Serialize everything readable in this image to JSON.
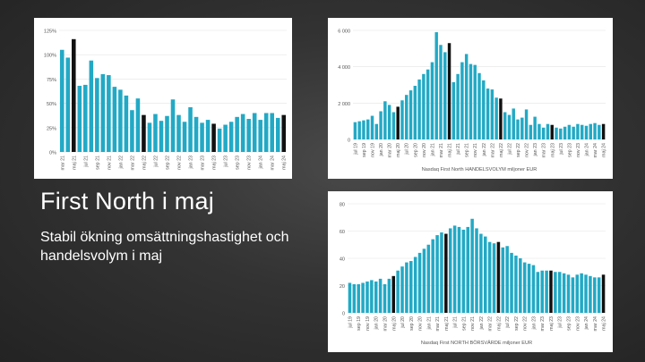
{
  "slide": {
    "title": "First North i maj",
    "subtitle": "Stabil ökning omsättningshastighet och handelsvolym i maj"
  },
  "colors": {
    "bar": "#22a9c5",
    "highlight": "#111111",
    "grid": "#e3e3e3",
    "text": "#555555"
  },
  "chart_data": [
    {
      "type": "bar",
      "title": "",
      "xlabel": "",
      "ylabel": "",
      "ylim": [
        0,
        125
      ],
      "yticks": [
        0,
        25,
        50,
        75,
        100,
        125
      ],
      "ytick_labels": [
        "0%",
        "25%",
        "50%",
        "75%",
        "100%",
        "125%"
      ],
      "categories": [
        "mar 21",
        "apr 21",
        "maj 21",
        "jun 21",
        "jul 21",
        "aug 21",
        "sep 21",
        "okt 21",
        "nov 21",
        "dec 21",
        "jan 22",
        "feb 22",
        "mar 22",
        "apr 22",
        "maj 22",
        "jun 22",
        "jul 22",
        "aug 22",
        "sep 22",
        "okt 22",
        "nov 22",
        "dec 22",
        "jan 23",
        "feb 23",
        "mar 23",
        "apr 23",
        "maj 23",
        "jun 23",
        "jul 23",
        "aug 23",
        "sep 23",
        "okt 23",
        "nov 23",
        "dec 23",
        "jan 24",
        "feb 24",
        "mar 24",
        "apr 24",
        "maj 24"
      ],
      "xtick_labels": [
        "mar 21",
        "maj 21",
        "jul 21",
        "sep 21",
        "nov 21",
        "jan 22",
        "mar 22",
        "maj 22",
        "jul 22",
        "sep 22",
        "nov 22",
        "jan 23",
        "mar 23",
        "maj 23",
        "jul 23",
        "sep 23",
        "nov 23",
        "jan 24",
        "mar 24",
        "maj 24"
      ],
      "values": [
        105,
        97,
        116,
        68,
        69,
        94,
        76,
        80,
        79,
        67,
        64,
        58,
        43,
        55,
        38,
        30,
        39,
        32,
        37,
        54,
        38,
        31,
        46,
        36,
        30,
        33,
        29,
        24,
        28,
        31,
        36,
        39,
        34,
        40,
        33,
        40,
        40,
        35,
        38
      ],
      "highlight": [
        "maj 21",
        "maj 22",
        "maj 23",
        "maj 24"
      ]
    },
    {
      "type": "bar",
      "title": "Nasdaq First North HANDELSVOLYM miljoner EUR",
      "xlabel": "",
      "ylabel": "",
      "ylim": [
        0,
        6000
      ],
      "yticks": [
        0,
        2000,
        4000,
        6000
      ],
      "ytick_labels": [
        "0",
        "2 000",
        "4 000",
        "6 000"
      ],
      "categories": [
        "jul 19",
        "aug 19",
        "sep 19",
        "okt 19",
        "nov 19",
        "dec 19",
        "jan 20",
        "feb 20",
        "mar 20",
        "apr 20",
        "maj 20",
        "jun 20",
        "jul 20",
        "aug 20",
        "sep 20",
        "okt 20",
        "nov 20",
        "dec 20",
        "jan 21",
        "feb 21",
        "mar 21",
        "apr 21",
        "maj 21",
        "jun 21",
        "jul 21",
        "aug 21",
        "sep 21",
        "okt 21",
        "nov 21",
        "dec 21",
        "jan 22",
        "feb 22",
        "mar 22",
        "apr 22",
        "maj 22",
        "jun 22",
        "jul 22",
        "aug 22",
        "sep 22",
        "okt 22",
        "nov 22",
        "dec 22",
        "jan 23",
        "feb 23",
        "mar 23",
        "apr 23",
        "maj 23",
        "jun 23",
        "jul 23",
        "aug 23",
        "sep 23",
        "okt 23",
        "nov 23",
        "dec 23",
        "jan 24",
        "feb 24",
        "mar 24",
        "apr 24",
        "maj 24"
      ],
      "xtick_labels": [
        "jul 19",
        "sep 19",
        "nov 19",
        "jan 20",
        "mar 20",
        "maj 20",
        "jul 20",
        "sep 20",
        "nov 20",
        "jan 21",
        "mar 21",
        "maj 21",
        "jul 21",
        "sep 21",
        "nov 21",
        "jan 22",
        "mar 22",
        "maj 22",
        "jul 22",
        "sep 22",
        "nov 22",
        "jan 23",
        "mar 23",
        "maj 23",
        "jul 23",
        "sep 23",
        "nov 23",
        "jan 24",
        "mar 24",
        "maj 24"
      ],
      "values": [
        950,
        1000,
        1050,
        1100,
        1300,
        850,
        1550,
        2100,
        1900,
        1500,
        1800,
        2150,
        2450,
        2700,
        2950,
        3300,
        3600,
        3850,
        4250,
        5900,
        5200,
        4800,
        5300,
        3150,
        3600,
        4250,
        4700,
        4150,
        4100,
        3650,
        3250,
        2800,
        2750,
        2300,
        2250,
        1500,
        1350,
        1700,
        1100,
        1200,
        1650,
        800,
        1250,
        850,
        650,
        850,
        800,
        650,
        600,
        700,
        800,
        700,
        850,
        800,
        750,
        850,
        900,
        800,
        850
      ],
      "highlight": [
        "maj 20",
        "maj 21",
        "maj 22",
        "maj 23",
        "maj 24"
      ]
    },
    {
      "type": "bar",
      "title": "Nasdaq First NORTH BÖRSVÄRDE miljoner EUR",
      "xlabel": "",
      "ylabel": "",
      "ylim": [
        0,
        80
      ],
      "yticks": [
        0,
        20,
        40,
        60,
        80
      ],
      "ytick_labels": [
        "0",
        "20",
        "40",
        "60",
        "80"
      ],
      "categories": [
        "jul 19",
        "aug 19",
        "sep 19",
        "okt 19",
        "nov 19",
        "dec 19",
        "jan 20",
        "feb 20",
        "mar 20",
        "apr 20",
        "maj 20",
        "jun 20",
        "jul 20",
        "aug 20",
        "sep 20",
        "okt 20",
        "nov 20",
        "dec 20",
        "jan 21",
        "feb 21",
        "mar 21",
        "apr 21",
        "maj 21",
        "jun 21",
        "jul 21",
        "aug 21",
        "sep 21",
        "okt 21",
        "nov 21",
        "dec 21",
        "jan 22",
        "feb 22",
        "mar 22",
        "apr 22",
        "maj 22",
        "jun 22",
        "jul 22",
        "aug 22",
        "sep 22",
        "okt 22",
        "nov 22",
        "dec 22",
        "jan 23",
        "feb 23",
        "mar 23",
        "apr 23",
        "maj 23",
        "jun 23",
        "jul 23",
        "aug 23",
        "sep 23",
        "okt 23",
        "nov 23",
        "dec 23",
        "jan 24",
        "feb 24",
        "mar 24",
        "apr 24",
        "maj 24"
      ],
      "xtick_labels": [
        "jul 19",
        "sep 19",
        "nov 19",
        "jan 20",
        "mar 20",
        "maj 20",
        "jul 20",
        "sep 20",
        "nov 20",
        "jan 21",
        "mar 21",
        "maj 21",
        "jul 21",
        "sep 21",
        "nov 21",
        "jan 22",
        "mar 22",
        "maj 22",
        "jul 22",
        "sep 22",
        "nov 22",
        "jan 23",
        "mar 23",
        "maj 23",
        "jul 23",
        "sep 23",
        "nov 23",
        "jan 24",
        "mar 24",
        "maj 24"
      ],
      "values": [
        22,
        21,
        21,
        22,
        23,
        24,
        23,
        25,
        21,
        25,
        27,
        31,
        34,
        37,
        38,
        41,
        44,
        47,
        50,
        54,
        57,
        59,
        58,
        62,
        64,
        63,
        61,
        63,
        69,
        62,
        58,
        56,
        52,
        51,
        52,
        48,
        49,
        44,
        42,
        40,
        37,
        36,
        35,
        30,
        31,
        31,
        31,
        30,
        30,
        29,
        28,
        26,
        28,
        29,
        28,
        27,
        26,
        26,
        28
      ],
      "highlight": [
        "maj 20",
        "maj 21",
        "maj 22",
        "maj 23",
        "maj 24"
      ]
    }
  ]
}
